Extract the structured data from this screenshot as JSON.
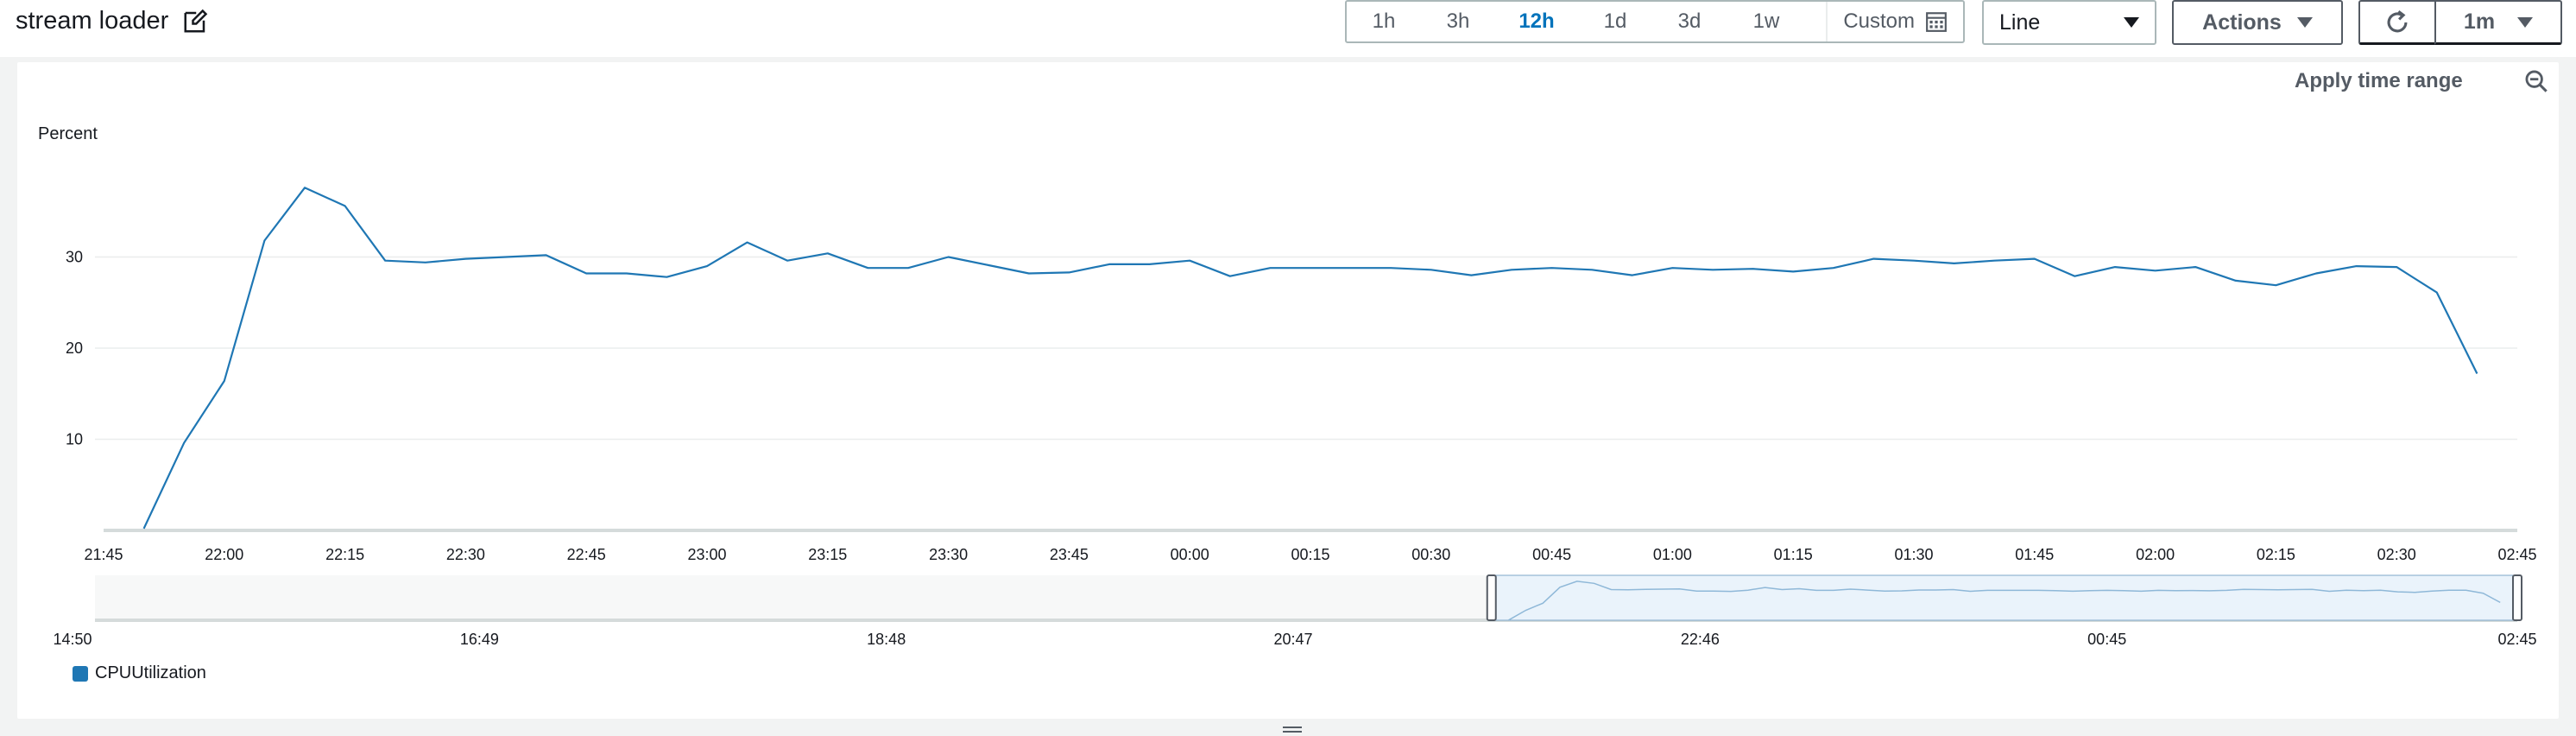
{
  "header": {
    "title": "stream loader",
    "edit_icon": "edit-icon"
  },
  "toolbar": {
    "time_ranges": [
      "1h",
      "3h",
      "12h",
      "1d",
      "3d",
      "1w"
    ],
    "active_range": "12h",
    "custom_label": "Custom",
    "custom_icon": "calendar-icon",
    "chart_type_value": "Line",
    "actions_label": "Actions",
    "refresh_icon": "refresh-icon",
    "interval_value": "1m"
  },
  "panel": {
    "apply_time_range_label": "Apply time range",
    "zoom_out_icon": "zoom-out-icon",
    "y_unit_label": "Percent"
  },
  "colors": {
    "series": "#1f77b4",
    "active_range": "#0073bb",
    "navigator_fill": "#eaf3fb"
  },
  "chart_data": {
    "type": "line",
    "title": "",
    "xlabel": "",
    "ylabel": "Percent",
    "ylim": [
      0,
      40
    ],
    "yticks": [
      10,
      20,
      30
    ],
    "x_tick_labels": [
      "21:45",
      "22:00",
      "22:15",
      "22:30",
      "22:45",
      "23:00",
      "23:15",
      "23:30",
      "23:45",
      "00:00",
      "00:15",
      "00:30",
      "00:45",
      "01:00",
      "01:15",
      "01:30",
      "01:45",
      "02:00",
      "02:15",
      "02:30",
      "02:45"
    ],
    "grid": true,
    "legend_position": "bottom-left",
    "series": [
      {
        "name": "CPUUtilization",
        "x": [
          "21:50",
          "21:55",
          "22:00",
          "22:05",
          "22:10",
          "22:15",
          "22:20",
          "22:25",
          "22:30",
          "22:35",
          "22:40",
          "22:45",
          "22:50",
          "22:55",
          "23:00",
          "23:05",
          "23:10",
          "23:15",
          "23:20",
          "23:25",
          "23:30",
          "23:35",
          "23:40",
          "23:45",
          "23:50",
          "23:55",
          "00:00",
          "00:05",
          "00:10",
          "00:15",
          "00:20",
          "00:25",
          "00:30",
          "00:35",
          "00:40",
          "00:45",
          "00:50",
          "00:55",
          "01:00",
          "01:05",
          "01:10",
          "01:15",
          "01:20",
          "01:25",
          "01:30",
          "01:35",
          "01:40",
          "01:45",
          "01:50",
          "01:55",
          "02:00",
          "02:05",
          "02:10",
          "02:15",
          "02:20",
          "02:25",
          "02:30",
          "02:35",
          "02:40"
        ],
        "values": [
          0.2,
          9.6,
          16.4,
          31.8,
          37.6,
          35.6,
          29.6,
          29.4,
          29.8,
          30.0,
          30.2,
          28.2,
          28.2,
          27.8,
          29.0,
          31.6,
          29.6,
          30.4,
          28.8,
          28.8,
          30.0,
          29.1,
          28.2,
          28.3,
          29.2,
          29.2,
          29.6,
          27.9,
          28.8,
          28.8,
          28.8,
          28.8,
          28.6,
          28.0,
          28.6,
          28.8,
          28.6,
          28.0,
          28.8,
          28.6,
          28.7,
          28.4,
          28.8,
          29.8,
          29.6,
          29.3,
          29.6,
          29.8,
          27.9,
          28.9,
          28.5,
          28.9,
          27.4,
          26.9,
          28.2,
          29.0,
          28.9,
          26.1,
          17.2
        ]
      }
    ],
    "navigator": {
      "x_tick_labels": [
        "14:50",
        "16:49",
        "18:48",
        "20:47",
        "22:46",
        "00:45",
        "02:45"
      ],
      "selected_range": [
        "21:45",
        "02:45"
      ]
    }
  },
  "legend": {
    "items": [
      {
        "label": "CPUUtilization",
        "color": "#1f77b4"
      }
    ]
  }
}
